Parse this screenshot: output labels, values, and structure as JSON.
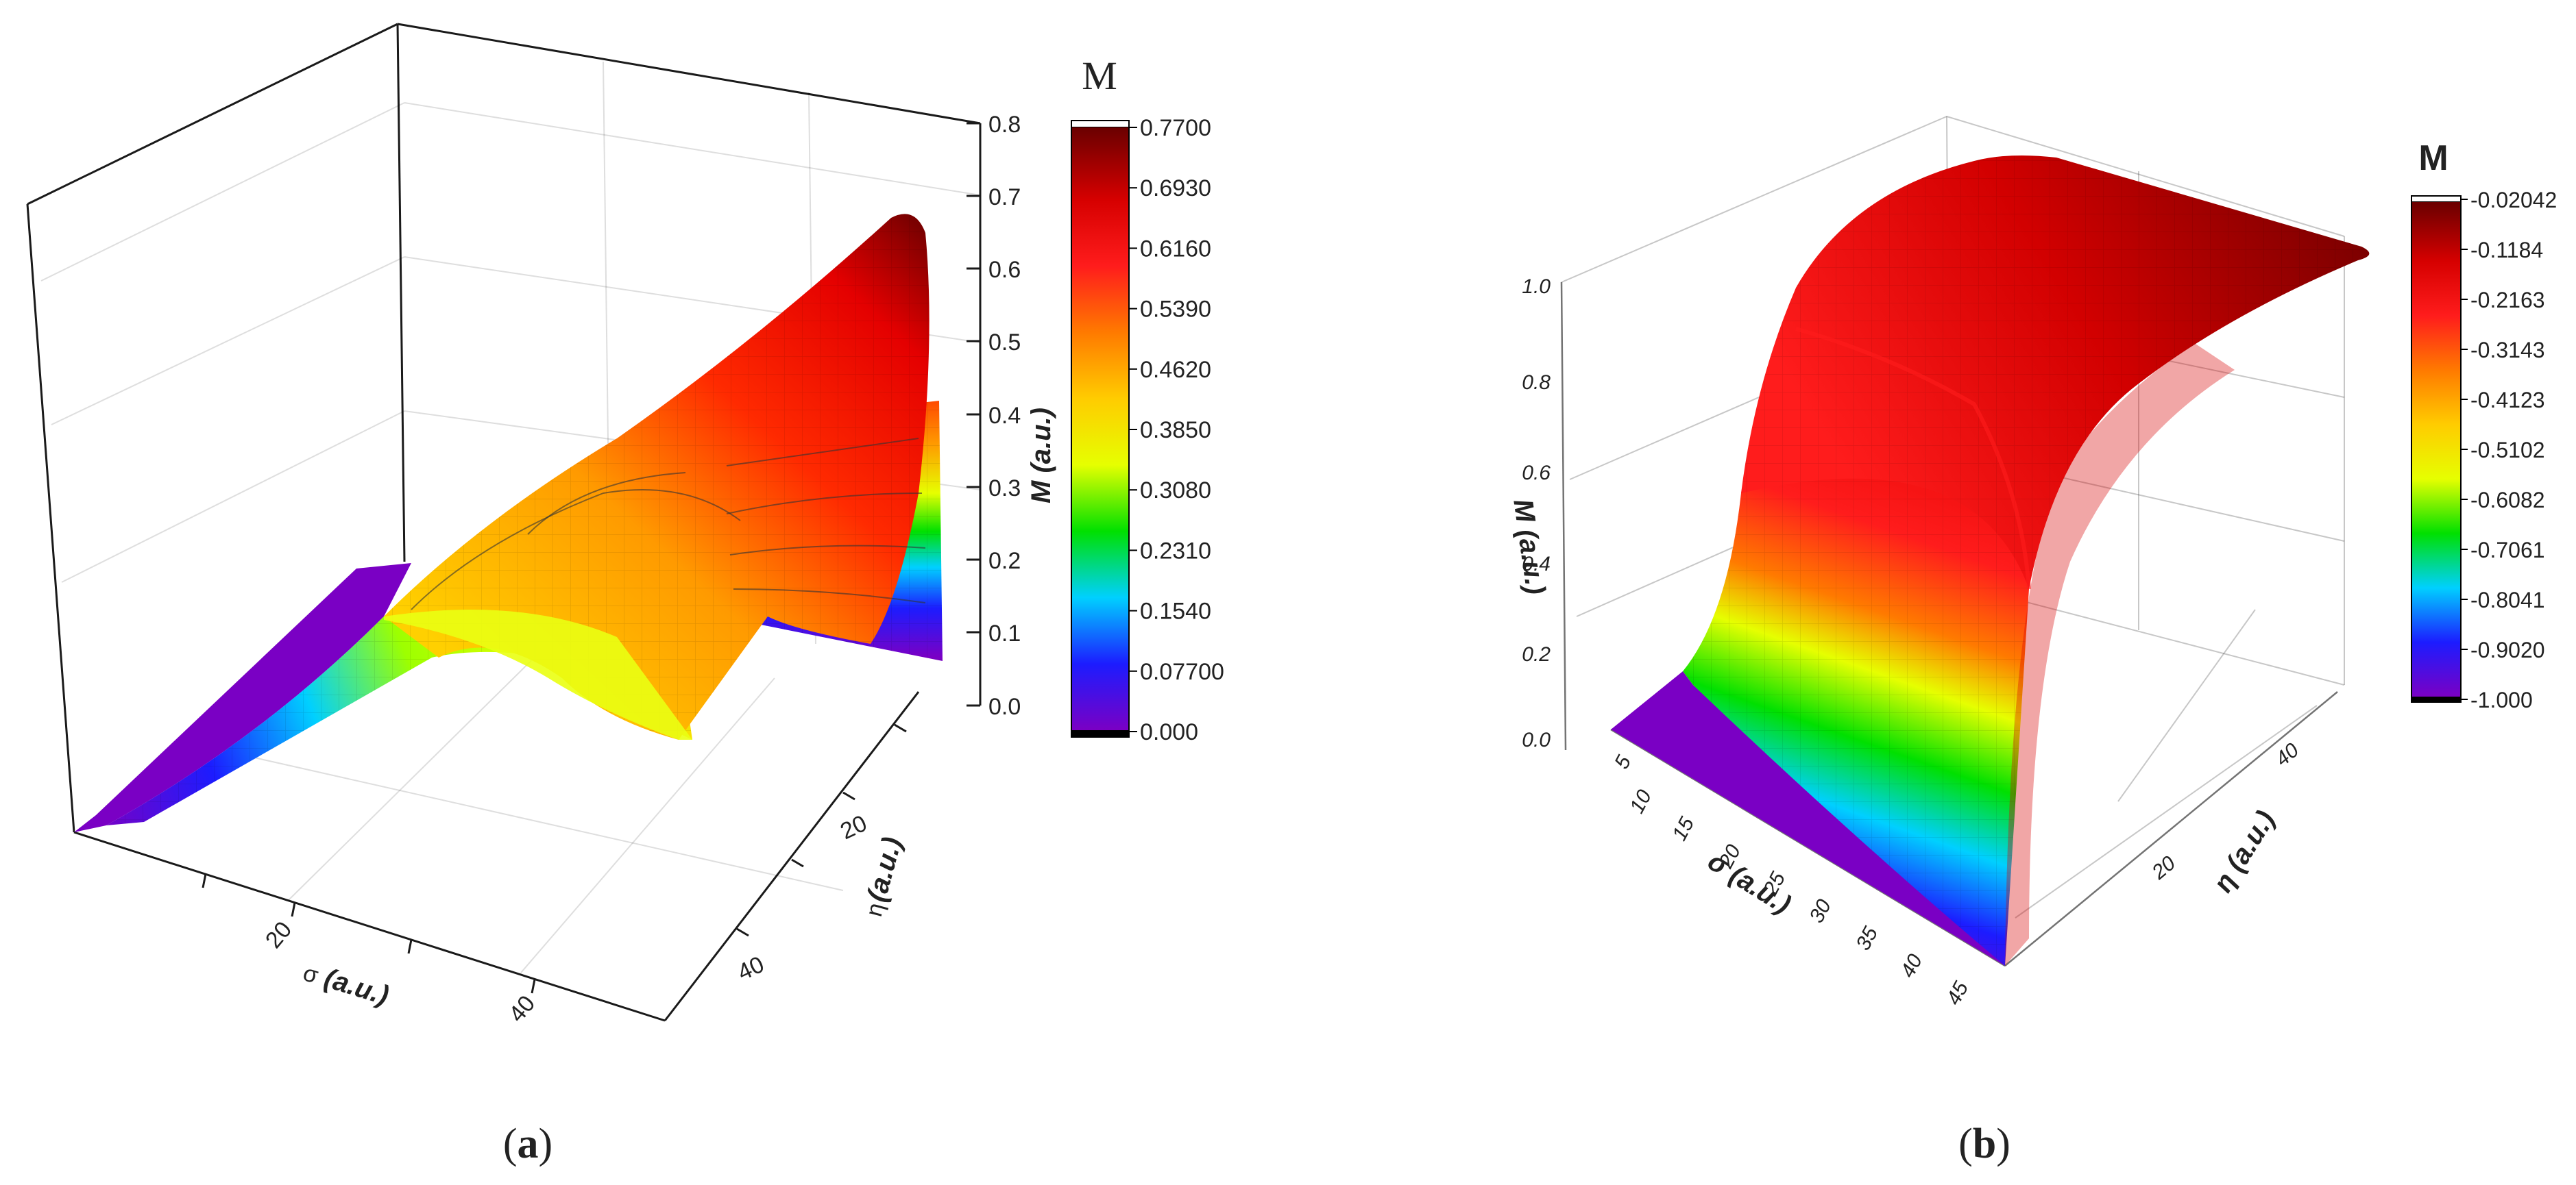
{
  "chart_data": [
    {
      "type": "surface3d",
      "panel_label": {
        "open": "(",
        "letter": "a",
        "close": ")"
      },
      "x_axis": {
        "label_symbol": "σ",
        "label_unit": "(a.u.)",
        "ticks": [
          "20",
          "40"
        ]
      },
      "y_axis": {
        "label_symbol": "η",
        "label_unit": "(a.u.)",
        "ticks": [
          "20",
          "40"
        ]
      },
      "z_axis": {
        "label": "M (a.u.)",
        "range": [
          0,
          0.8
        ],
        "ticks": [
          "0.0",
          "0.1",
          "0.2",
          "0.3",
          "0.4",
          "0.5",
          "0.6",
          "0.7",
          "0.8"
        ]
      },
      "colorbar": {
        "title": "M",
        "range": [
          0.0,
          0.77
        ],
        "ticks": [
          "0.7700",
          "0.6930",
          "0.6160",
          "0.5390",
          "0.4620",
          "0.3850",
          "0.3080",
          "0.2310",
          "0.1540",
          "0.07700",
          "0.000"
        ]
      },
      "colormap": [
        "#7a00c4",
        "#1c1cff",
        "#00d0ff",
        "#00e000",
        "#e6ff00",
        "#ffcc00",
        "#ff7a00",
        "#ff1c1c",
        "#d60000",
        "#6a0000"
      ],
      "grid": true
    },
    {
      "type": "surface3d",
      "panel_label": {
        "open": "(",
        "letter": "b",
        "close": ")"
      },
      "x_axis": {
        "label": "σ (a.u.)",
        "ticks": [
          "5",
          "10",
          "15",
          "20",
          "25",
          "30",
          "35",
          "40",
          "45"
        ]
      },
      "y_axis": {
        "label": "η (a.u.)",
        "ticks": [
          "20",
          "40"
        ]
      },
      "z_axis": {
        "label": "M (a.u.)",
        "range": [
          0,
          1.0
        ],
        "ticks": [
          "0.0",
          "0.2",
          "0.4",
          "0.6",
          "0.8",
          "1.0"
        ]
      },
      "colorbar": {
        "title": "M",
        "range": [
          -1.0,
          -0.02042
        ],
        "ticks": [
          "-0.02042",
          "-0.1184",
          "-0.2163",
          "-0.3143",
          "-0.4123",
          "-0.5102",
          "-0.6082",
          "-0.7061",
          "-0.8041",
          "-0.9020",
          "-1.000"
        ]
      },
      "colormap": [
        "#7a00c4",
        "#1c1cff",
        "#00d0ff",
        "#00e000",
        "#e6ff00",
        "#ffcc00",
        "#ff7a00",
        "#ff1c1c",
        "#d60000",
        "#6a0000"
      ],
      "grid": true
    }
  ]
}
